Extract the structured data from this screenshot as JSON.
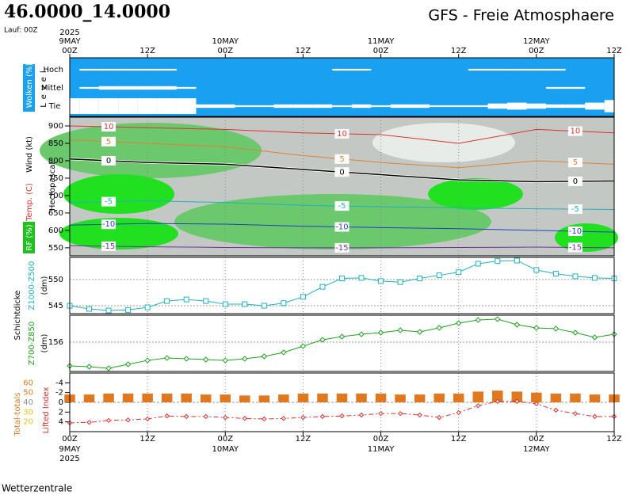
{
  "header": {
    "title": "46.0000_14.0000",
    "subtitle": "GFS - Freie Atmosphaere",
    "run": "Lauf: 00Z",
    "footer": "Wetterzentrale"
  },
  "time": {
    "xlim": [
      0,
      84
    ],
    "xticks": [
      {
        "value": 0,
        "label": "00Z"
      },
      {
        "value": 12,
        "label": "12Z"
      },
      {
        "value": 24,
        "label": "00Z"
      },
      {
        "value": 36,
        "label": "12Z"
      },
      {
        "value": 48,
        "label": "00Z"
      },
      {
        "value": 60,
        "label": "12Z"
      },
      {
        "value": 72,
        "label": "00Z"
      },
      {
        "value": 84,
        "label": "12Z"
      }
    ],
    "dates": [
      {
        "value": 0,
        "label": "9MAY"
      },
      {
        "value": 24,
        "label": "10MAY"
      },
      {
        "value": 48,
        "label": "11MAY"
      },
      {
        "value": 72,
        "label": "12MAY"
      }
    ],
    "year": "2025"
  },
  "chart_data": [
    {
      "type": "cloud",
      "ylabel": "Wolken (%)",
      "y2label": "Level",
      "color": "#1aa0f0",
      "x": [
        0,
        3,
        6,
        9,
        12,
        15,
        18,
        21,
        24,
        27,
        30,
        33,
        36,
        39,
        42,
        45,
        48,
        51,
        54,
        57,
        60,
        63,
        66,
        69,
        72,
        75,
        78,
        81,
        84
      ],
      "series": [
        {
          "name": "Hoch",
          "values": [
            0,
            10,
            10,
            10,
            10,
            10,
            0,
            0,
            0,
            0,
            0,
            0,
            0,
            0,
            10,
            10,
            0,
            0,
            0,
            0,
            0,
            10,
            10,
            10,
            10,
            10,
            0,
            0,
            0
          ]
        },
        {
          "name": "Mittel",
          "values": [
            0,
            10,
            20,
            20,
            20,
            20,
            10,
            0,
            0,
            0,
            0,
            0,
            0,
            0,
            0,
            0,
            0,
            0,
            0,
            0,
            0,
            0,
            0,
            0,
            0,
            10,
            10,
            0,
            0
          ]
        },
        {
          "name": "Tief",
          "values": [
            90,
            90,
            90,
            90,
            90,
            90,
            90,
            20,
            20,
            10,
            10,
            20,
            20,
            20,
            10,
            20,
            10,
            20,
            20,
            10,
            10,
            10,
            30,
            40,
            30,
            20,
            20,
            40,
            70
          ]
        }
      ]
    },
    {
      "type": "contour",
      "ylabel": "Hectopascal",
      "labels": [
        "Wind (kt)",
        "Temp. (C)",
        "RF (%)"
      ],
      "ylim": [
        527,
        925
      ],
      "yticks": [
        550,
        600,
        650,
        700,
        750,
        800,
        850,
        900
      ],
      "x": [
        0,
        12,
        24,
        36,
        48,
        60,
        72,
        84
      ],
      "series": [
        {
          "name": "-15",
          "color": "#7030a0",
          "values": [
            556,
            553,
            551,
            550,
            550,
            551,
            552,
            550
          ]
        },
        {
          "name": "-10",
          "color": "#2040c0",
          "values": [
            615,
            620,
            618,
            612,
            608,
            605,
            600,
            595
          ]
        },
        {
          "name": "-5",
          "color": "#20b0c0",
          "values": [
            680,
            685,
            680,
            672,
            668,
            665,
            662,
            660
          ]
        },
        {
          "name": "0",
          "color": "#000000",
          "values": [
            805,
            795,
            790,
            775,
            760,
            745,
            740,
            742
          ]
        },
        {
          "name": "5",
          "color": "#e08030",
          "values": [
            860,
            850,
            840,
            815,
            795,
            780,
            800,
            790
          ]
        },
        {
          "name": "10",
          "color": "#e03030",
          "values": [
            900,
            895,
            890,
            880,
            875,
            850,
            890,
            880
          ]
        }
      ]
    },
    {
      "type": "line",
      "ylabel": "Z1000-Z500",
      "unit": "(dm)",
      "group_label": "Schichtdicke",
      "color": "#20b0c0",
      "marker": "square",
      "ylim": [
        543.5,
        554.2
      ],
      "yticks": [
        545,
        550
      ],
      "x": [
        0,
        3,
        6,
        9,
        12,
        15,
        18,
        21,
        24,
        27,
        30,
        33,
        36,
        39,
        42,
        45,
        48,
        51,
        54,
        57,
        60,
        63,
        66,
        69,
        72,
        75,
        78,
        81,
        84
      ],
      "values": [
        545.0,
        544.4,
        544.1,
        544.2,
        544.7,
        545.9,
        546.2,
        545.9,
        545.3,
        545.3,
        545.0,
        545.5,
        546.7,
        548.6,
        550.2,
        550.3,
        549.7,
        549.5,
        550.2,
        550.8,
        551.4,
        553.0,
        553.5,
        553.6,
        551.8,
        551.1,
        550.6,
        550.3,
        550.2
      ]
    },
    {
      "type": "line",
      "ylabel": "Z700-Z850",
      "unit": "(dm)",
      "color": "#20a020",
      "marker": "diamond",
      "ylim": [
        152.92,
        158.83
      ],
      "yticks": [
        156
      ],
      "x": [
        0,
        3,
        6,
        9,
        12,
        15,
        18,
        21,
        24,
        27,
        30,
        33,
        36,
        39,
        42,
        45,
        48,
        51,
        54,
        57,
        60,
        63,
        66,
        69,
        72,
        75,
        78,
        81,
        84
      ],
      "values": [
        153.5,
        153.42,
        153.25,
        153.67,
        154.08,
        154.33,
        154.25,
        154.17,
        154.08,
        154.25,
        154.5,
        154.92,
        155.58,
        156.25,
        156.58,
        156.83,
        157.0,
        157.25,
        157.08,
        157.5,
        158.0,
        158.33,
        158.42,
        157.83,
        157.5,
        157.42,
        157.0,
        156.5,
        156.83
      ]
    },
    {
      "type": "stability",
      "ylim": [
        6,
        -6
      ],
      "yticks": [
        -4,
        -2,
        0,
        2,
        4
      ],
      "y2lim": [
        10,
        70
      ],
      "y2ticks": [
        60,
        50,
        40,
        30,
        20
      ],
      "y2tick_colors": [
        "#e07820",
        "#e07820",
        "#909090",
        "#e8c020",
        "#e8c020"
      ],
      "x": [
        0,
        3,
        6,
        9,
        12,
        15,
        18,
        21,
        24,
        27,
        30,
        33,
        36,
        39,
        42,
        45,
        48,
        51,
        54,
        57,
        60,
        63,
        66,
        69,
        72,
        75,
        78,
        81,
        84
      ],
      "series": [
        {
          "name": "Total-totals",
          "color": "#e07820",
          "axis": "y2",
          "values": [
            48,
            48,
            49,
            49,
            49,
            49,
            49,
            48,
            48,
            47,
            47,
            48,
            49,
            49,
            49,
            49,
            49,
            48,
            48,
            49,
            49,
            51,
            52,
            51,
            50,
            49,
            49,
            48,
            48
          ]
        },
        {
          "name": "Lifted Index",
          "color": "#e03030",
          "values": [
            4.2,
            4.1,
            3.7,
            3.6,
            3.4,
            2.8,
            2.9,
            2.9,
            3.1,
            3.3,
            3.4,
            3.3,
            3.1,
            2.9,
            2.8,
            2.6,
            2.3,
            2.3,
            2.6,
            3.1,
            2.1,
            0.7,
            -0.2,
            -0.2,
            0.3,
            1.6,
            2.3,
            2.9,
            2.9
          ]
        }
      ]
    }
  ]
}
